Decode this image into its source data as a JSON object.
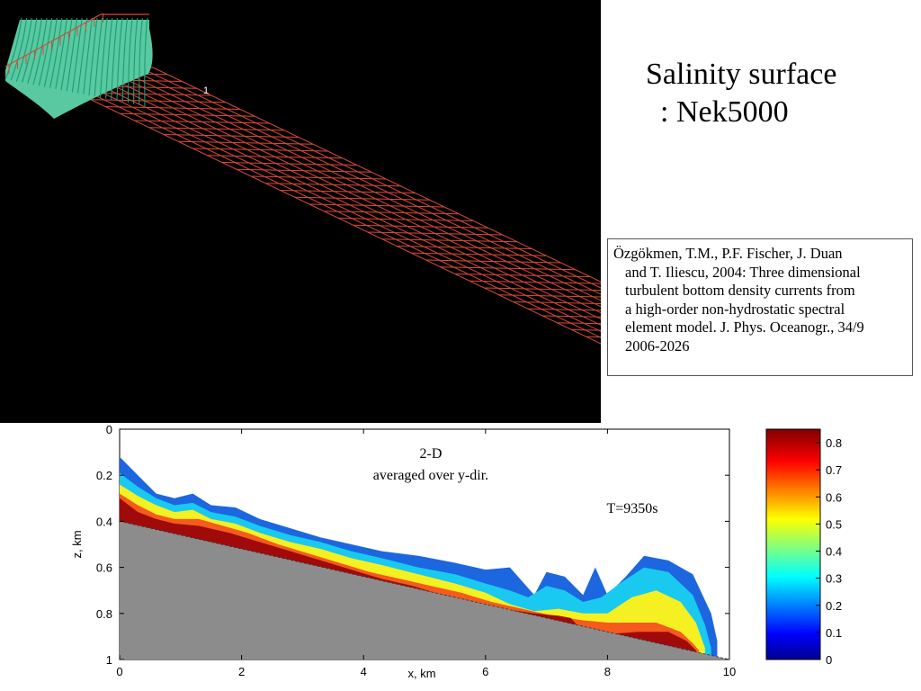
{
  "slide": {
    "title_line1": "Salinity surface",
    "title_line2": ":  Nek5000",
    "mesh_label": "1",
    "citation": {
      "first": "Özgökmen, T.M., P.F. Fischer, J. Duan",
      "lines": [
        "and T. Iliescu, 2004: Three dimensional",
        "turbulent bottom density currents from",
        "a high-order non-hydrostatic spectral",
        "element model. J. Phys. Oceanogr., 34/9",
        "2006-2026"
      ]
    }
  },
  "colors": {
    "mesh_background": "#000000",
    "mesh_lines": "#d84a3a",
    "salinity_surface": "#58c9a0",
    "bathymetry": "#8c8c8c"
  },
  "chart_data": {
    "type": "heatmap",
    "annotations": [
      "2-D",
      "averaged  over  y-dir.",
      "T=9350s"
    ],
    "xlabel": "x, km",
    "ylabel": "z, km",
    "xlim": [
      0,
      10
    ],
    "ylim": [
      0,
      1
    ],
    "y_inverted": true,
    "x_ticks": [
      "0",
      "2",
      "4",
      "6",
      "8",
      "10"
    ],
    "y_ticks": [
      "0",
      "0.2",
      "0.4",
      "0.6",
      "0.8",
      "1"
    ],
    "bottom_slope": {
      "x": [
        0,
        10
      ],
      "z": [
        0.4,
        1.0
      ]
    },
    "colorbar": {
      "range": [
        0,
        0.85
      ],
      "ticks": [
        "0.8",
        "0.7",
        "0.6",
        "0.5",
        "0.4",
        "0.3",
        "0.2",
        "0.1",
        "0"
      ]
    },
    "contour_levels": [
      {
        "value": 0.15,
        "color": "#1c66e0",
        "top": [
          [
            0,
            0.12
          ],
          [
            0.3,
            0.2
          ],
          [
            0.6,
            0.28
          ],
          [
            0.9,
            0.3
          ],
          [
            1.2,
            0.28
          ],
          [
            1.5,
            0.33
          ],
          [
            1.9,
            0.34
          ],
          [
            2.3,
            0.39
          ],
          [
            2.8,
            0.43
          ],
          [
            3.3,
            0.47
          ],
          [
            3.8,
            0.5
          ],
          [
            4.3,
            0.53
          ],
          [
            4.9,
            0.55
          ],
          [
            5.5,
            0.58
          ],
          [
            6.0,
            0.61
          ],
          [
            6.4,
            0.6
          ],
          [
            6.8,
            0.72
          ],
          [
            7.0,
            0.62
          ],
          [
            7.3,
            0.64
          ],
          [
            7.6,
            0.72
          ],
          [
            7.8,
            0.6
          ],
          [
            8.0,
            0.72
          ],
          [
            8.3,
            0.64
          ],
          [
            8.6,
            0.55
          ],
          [
            9.0,
            0.57
          ],
          [
            9.4,
            0.63
          ],
          [
            9.7,
            0.8
          ],
          [
            9.8,
            0.92
          ]
        ]
      },
      {
        "value": 0.25,
        "color": "#19c9f0",
        "top": [
          [
            0,
            0.19
          ],
          [
            0.3,
            0.25
          ],
          [
            0.6,
            0.3
          ],
          [
            0.9,
            0.33
          ],
          [
            1.2,
            0.32
          ],
          [
            1.5,
            0.36
          ],
          [
            1.9,
            0.38
          ],
          [
            2.3,
            0.42
          ],
          [
            2.8,
            0.46
          ],
          [
            3.3,
            0.49
          ],
          [
            3.8,
            0.53
          ],
          [
            4.3,
            0.56
          ],
          [
            4.9,
            0.6
          ],
          [
            5.5,
            0.63
          ],
          [
            6.0,
            0.67
          ],
          [
            6.4,
            0.7
          ],
          [
            6.7,
            0.73
          ],
          [
            7.0,
            0.68
          ],
          [
            7.3,
            0.7
          ],
          [
            7.6,
            0.75
          ],
          [
            7.9,
            0.73
          ],
          [
            8.2,
            0.67
          ],
          [
            8.6,
            0.6
          ],
          [
            9.0,
            0.62
          ],
          [
            9.4,
            0.72
          ],
          [
            9.6,
            0.85
          ],
          [
            9.7,
            0.95
          ]
        ]
      },
      {
        "value": 0.45,
        "color": "#f5f022",
        "top": [
          [
            0,
            0.24
          ],
          [
            0.3,
            0.29
          ],
          [
            0.6,
            0.33
          ],
          [
            0.9,
            0.36
          ],
          [
            1.2,
            0.35
          ],
          [
            1.5,
            0.39
          ],
          [
            1.9,
            0.41
          ],
          [
            2.3,
            0.45
          ],
          [
            2.8,
            0.49
          ],
          [
            3.3,
            0.52
          ],
          [
            3.8,
            0.56
          ],
          [
            4.3,
            0.59
          ],
          [
            4.9,
            0.63
          ],
          [
            5.5,
            0.67
          ],
          [
            6.0,
            0.71
          ],
          [
            6.4,
            0.76
          ],
          [
            6.8,
            0.79
          ],
          [
            7.2,
            0.78
          ],
          [
            7.6,
            0.8
          ],
          [
            8.0,
            0.8
          ],
          [
            8.4,
            0.73
          ],
          [
            8.8,
            0.7
          ],
          [
            9.2,
            0.75
          ],
          [
            9.45,
            0.84
          ],
          [
            9.6,
            0.95
          ]
        ]
      },
      {
        "value": 0.65,
        "color": "#f55a1e",
        "top": [
          [
            0,
            0.28
          ],
          [
            0.3,
            0.33
          ],
          [
            0.6,
            0.37
          ],
          [
            0.9,
            0.39
          ],
          [
            1.3,
            0.39
          ],
          [
            1.7,
            0.42
          ],
          [
            2.1,
            0.45
          ],
          [
            2.6,
            0.5
          ],
          [
            3.1,
            0.54
          ],
          [
            3.6,
            0.58
          ],
          [
            4.1,
            0.62
          ],
          [
            4.6,
            0.65
          ],
          [
            5.1,
            0.68
          ],
          [
            5.6,
            0.71
          ],
          [
            6.1,
            0.75
          ],
          [
            6.6,
            0.78
          ],
          [
            7.1,
            0.81
          ],
          [
            7.6,
            0.83
          ],
          [
            8.0,
            0.84
          ],
          [
            8.4,
            0.84
          ],
          [
            8.8,
            0.84
          ],
          [
            9.2,
            0.88
          ],
          [
            9.4,
            0.93
          ],
          [
            9.5,
            0.96
          ]
        ]
      },
      {
        "value": 0.8,
        "color": "#a00a0a",
        "top": [
          [
            0,
            0.3
          ],
          [
            0.3,
            0.36
          ],
          [
            0.6,
            0.39
          ],
          [
            0.9,
            0.41
          ],
          [
            1.3,
            0.42
          ],
          [
            1.8,
            0.45
          ],
          [
            2.3,
            0.49
          ],
          [
            2.8,
            0.53
          ],
          [
            3.3,
            0.57
          ],
          [
            3.8,
            0.61
          ],
          [
            4.3,
            0.65
          ],
          [
            4.8,
            0.68
          ],
          [
            5.3,
            0.72
          ],
          [
            5.8,
            0.75
          ],
          [
            6.3,
            0.78
          ],
          [
            6.8,
            0.8
          ],
          [
            7.2,
            0.81
          ],
          [
            7.4,
            0.82
          ],
          [
            7.5,
            0.85
          ],
          [
            8.0,
            0.89
          ],
          [
            8.5,
            0.88
          ],
          [
            9.0,
            0.88
          ],
          [
            9.3,
            0.92
          ],
          [
            9.45,
            0.96
          ]
        ]
      }
    ]
  }
}
